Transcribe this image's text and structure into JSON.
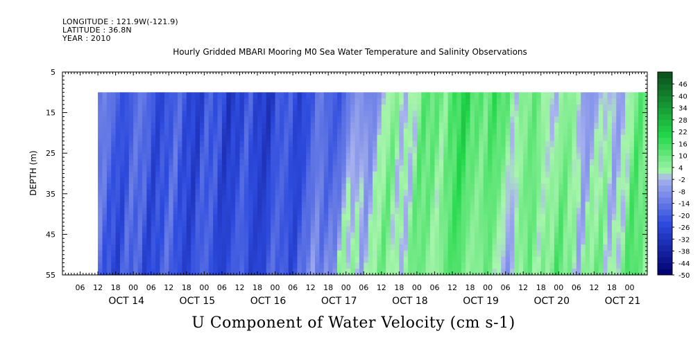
{
  "header": {
    "longitude": "LONGITUDE : 121.9W(-121.9)",
    "latitude": "LATITUDE : 36.8N",
    "year": "YEAR : 2010"
  },
  "chart_data": {
    "type": "heatmap",
    "title": "Hourly Gridded MBARI Mooring M0 Sea Water Temperature and Salinity Observations",
    "xlabel": "U Component of Water Velocity (cm s-1)",
    "ylabel": "DEPTH (m)",
    "x_range": [
      "2010-10-13 00:00",
      "2010-10-21 06:00"
    ],
    "data_range": [
      "2010-10-13 12:00",
      "2010-10-21 06:00"
    ],
    "hour_ticks": [
      "06",
      "12",
      "18",
      "00",
      "06",
      "12",
      "18",
      "00",
      "06",
      "12",
      "18",
      "00",
      "06",
      "12",
      "18",
      "00",
      "06",
      "12",
      "18",
      "00",
      "06",
      "12",
      "18",
      "00",
      "06",
      "12",
      "18",
      "00",
      "06",
      "12",
      "18",
      "00"
    ],
    "day_labels": [
      "OCT 14",
      "OCT 15",
      "OCT 16",
      "OCT 17",
      "OCT 18",
      "OCT 19",
      "OCT 20",
      "OCT 21"
    ],
    "yticks": [
      "5",
      "15",
      "25",
      "35",
      "45",
      "55"
    ],
    "ylim": [
      5,
      55
    ],
    "data_depth_range": [
      10,
      55
    ],
    "colorbar": {
      "labels": [
        "46",
        "40",
        "34",
        "28",
        "22",
        "16",
        "10",
        "4",
        "-2",
        "-8",
        "-14",
        "-20",
        "-26",
        "-32",
        "-38",
        "-44",
        "-50"
      ],
      "range": [
        -50,
        52
      ],
      "step": 3
    },
    "colors": {
      "low": "#00006e",
      "mid_blue": "#2d4bde",
      "light_blue": "#a9b3ee",
      "light_green": "#a8f5ad",
      "mid_green": "#22d84a",
      "high": "#0a4d1c",
      "frame": "#000000"
    },
    "grid": false
  }
}
